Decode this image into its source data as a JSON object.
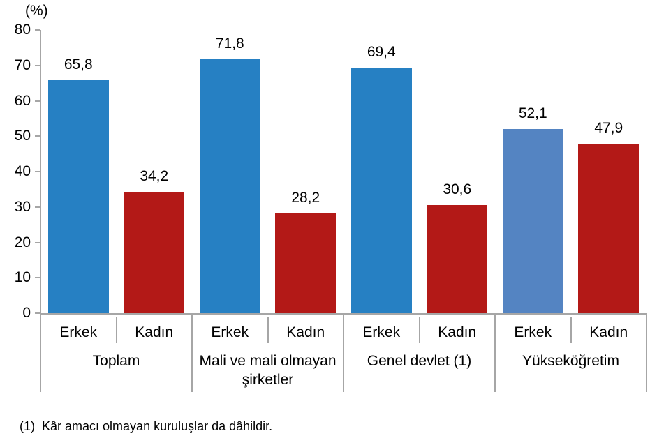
{
  "chart_data": {
    "type": "bar",
    "title": "",
    "unit_label": "(%)",
    "categories": [
      "Toplam",
      "Mali ve mali olmayan şirketler",
      "Genel devlet (1)",
      "Yükseköğretim"
    ],
    "series": [
      {
        "name": "Erkek",
        "values": [
          65.8,
          71.8,
          69.4,
          52.1
        ],
        "labels": [
          "65,8",
          "71,8",
          "69,4",
          "52,1"
        ],
        "color_keys": [
          "blue",
          "blue",
          "blue",
          "light_blue"
        ]
      },
      {
        "name": "Kadın",
        "values": [
          34.2,
          28.2,
          30.6,
          47.9
        ],
        "labels": [
          "34,2",
          "28,2",
          "30,6",
          "47,9"
        ],
        "color_keys": [
          "red",
          "red",
          "red",
          "red"
        ]
      }
    ],
    "ylim": [
      0,
      80
    ],
    "yticks": [
      0,
      10,
      20,
      30,
      40,
      50,
      60,
      70,
      80
    ],
    "ytick_labels": [
      "0",
      "10",
      "20",
      "30",
      "40",
      "50",
      "60",
      "70",
      "80"
    ],
    "grid": false,
    "legend": "none"
  },
  "footnote": {
    "marker": "(1)",
    "text": "Kâr amacı olmayan kuruluşlar da dâhildir."
  },
  "colors": {
    "blue": "#2680C3",
    "light_blue": "#5484C2",
    "red": "#B31917",
    "axis": "#A6A6A6",
    "text": "#000000"
  }
}
